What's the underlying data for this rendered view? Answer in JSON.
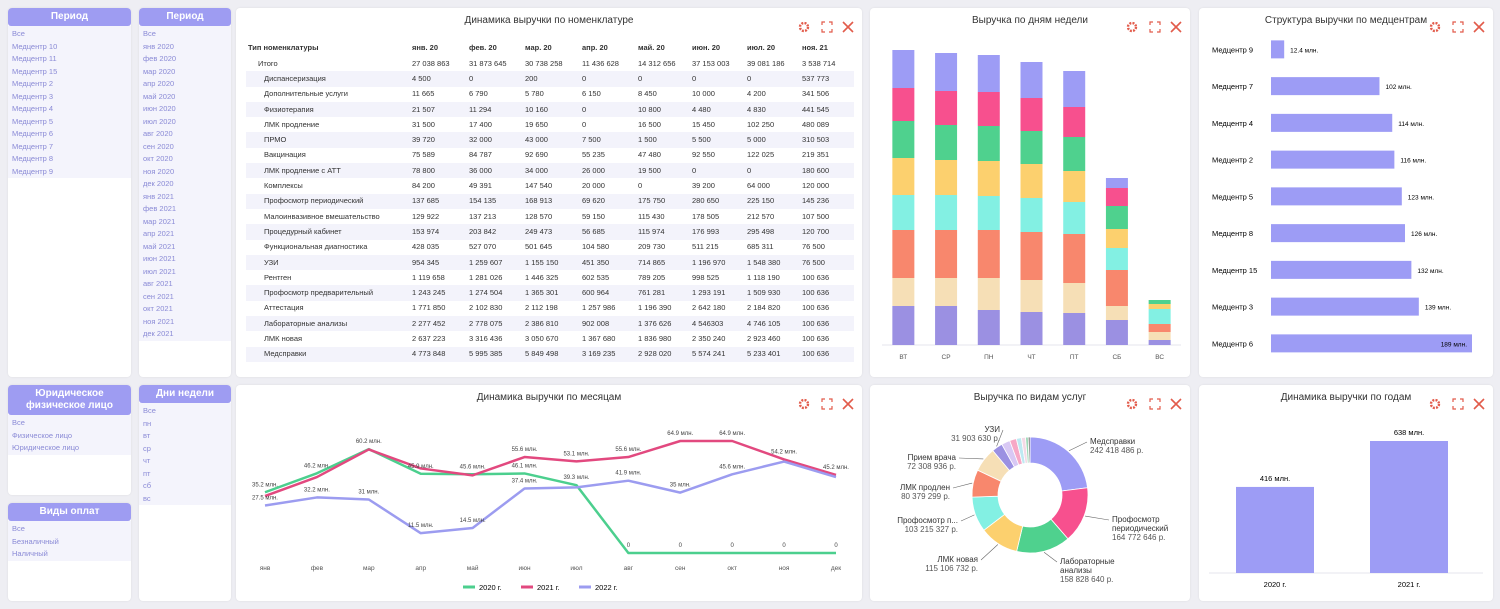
{
  "filters": [
    {
      "title": "Период",
      "items": [
        "Все",
        "Медцентр 10",
        "Медцентр 11",
        "Медцентр 15",
        "Медцентр 2",
        "Медцентр 3",
        "Медцентр 4",
        "Медцентр 5",
        "Медцентр 6",
        "Медцентр 7",
        "Медцентр 8",
        "Медцентр 9"
      ]
    },
    {
      "title": "Период",
      "items": [
        "Все",
        "янв 2020",
        "фев 2020",
        "мар 2020",
        "апр 2020",
        "май 2020",
        "июн 2020",
        "июл 2020",
        "авг 2020",
        "сен 2020",
        "окт 2020",
        "ноя 2020",
        "дек 2020",
        "янв 2021",
        "фев 2021",
        "мар 2021",
        "апр 2021",
        "май 2021",
        "июн 2021",
        "июл 2021",
        "авг 2021",
        "сен 2021",
        "окт 2021",
        "ноя 2021",
        "дек 2021"
      ]
    },
    {
      "title": "Юридическое физическое лицо",
      "items": [
        "Все",
        "Физическое лицо",
        "Юридическое лицо"
      ]
    },
    {
      "title": "Дни недели",
      "items": [
        "Все",
        "пн",
        "вт",
        "ср",
        "чт",
        "пт",
        "сб",
        "вс"
      ]
    },
    {
      "title": "Виды оплат",
      "items": [
        "Все",
        "Безналичный",
        "Наличный"
      ]
    }
  ],
  "table": {
    "title": "Динамика выручки по номенклатуре",
    "columns": [
      "Тип номенклатуры",
      "янв. 20",
      "фев. 20",
      "мар. 20",
      "апр. 20",
      "май. 20",
      "июн. 20",
      "июл. 20",
      "ноя. 21"
    ],
    "rows": [
      [
        "Итого",
        "27 038 863",
        "31 873 645",
        "30 738 258",
        "11 436 628",
        "14 312 656",
        "37 153 003",
        "39 081 186",
        "3 538 714"
      ],
      [
        "Диспансеризация",
        "4 500",
        "0",
        "200",
        "0",
        "0",
        "0",
        "0",
        "537 773"
      ],
      [
        "Дополнительные услуги",
        "11 665",
        "6 790",
        "5 780",
        "6 150",
        "8 450",
        "10 000",
        "4 200",
        "341 506"
      ],
      [
        "Физиотерапия",
        "21 507",
        "11 294",
        "10 160",
        "0",
        "10 800",
        "4 480",
        "4 830",
        "441 545"
      ],
      [
        "ЛМК продление",
        "31 500",
        "17 400",
        "19 650",
        "0",
        "16 500",
        "15 450",
        "102 250",
        "480 089"
      ],
      [
        "ПРМО",
        "39 720",
        "32 000",
        "43 000",
        "7 500",
        "1 500",
        "5 500",
        "5 000",
        "310 503"
      ],
      [
        "Вакцинация",
        "75 589",
        "84 787",
        "92 690",
        "55 235",
        "47 480",
        "92 550",
        "122 025",
        "219 351"
      ],
      [
        "ЛМК продление с АТТ",
        "78 800",
        "36 000",
        "34 000",
        "26 000",
        "19 500",
        "0",
        "0",
        "180 600"
      ],
      [
        "Комплексы",
        "84 200",
        "49 391",
        "147 540",
        "20 000",
        "0",
        "39 200",
        "64 000",
        "120 000"
      ],
      [
        "Профосмотр периодический",
        "137 685",
        "154 135",
        "168 913",
        "69 620",
        "175 750",
        "280 650",
        "225 150",
        "145 236"
      ],
      [
        "Малоинвазивное вмешательство",
        "129 922",
        "137 213",
        "128 570",
        "59 150",
        "115 430",
        "178 505",
        "212 570",
        "107 500"
      ],
      [
        "Процедурный кабинет",
        "153 974",
        "203 842",
        "249 473",
        "56 685",
        "115 974",
        "176 993",
        "295 498",
        "120 700"
      ],
      [
        "Функциональная диагностика",
        "428 035",
        "527 070",
        "501 645",
        "104 580",
        "209 730",
        "511 215",
        "685 311",
        "76 500"
      ],
      [
        "УЗИ",
        "954 345",
        "1 259 607",
        "1 155 150",
        "451 350",
        "714 865",
        "1 196 970",
        "1 548 380",
        "76 500"
      ],
      [
        "Рентген",
        "1 119 658",
        "1 281 026",
        "1 446 325",
        "602 535",
        "789 205",
        "998 525",
        "1 118 190",
        "100 636"
      ],
      [
        "Профосмотр предварительный",
        "1 243 245",
        "1 274 504",
        "1 365 301",
        "600 964",
        "761 281",
        "1 293 191",
        "1 509 930",
        "100 636"
      ],
      [
        "Аттестация",
        "1 771 850",
        "2 102 830",
        "2 112 198",
        "1 257 986",
        "1 196 390",
        "2 642 180",
        "2 184 820",
        "100 636"
      ],
      [
        "Лабораторные анализы",
        "2 277 452",
        "2 778 075",
        "2 386 810",
        "902 008",
        "1 376 626",
        "4 546303",
        "4 746 105",
        "100 636"
      ],
      [
        "ЛМК новая",
        "2 637 223",
        "3 316 436",
        "3 050 670",
        "1 367 680",
        "1 836 980",
        "2 350 240",
        "2 923 460",
        "100 636"
      ],
      [
        "Медсправки",
        "4 773 848",
        "5 995 385",
        "5 849 498",
        "3 169 235",
        "2 928 020",
        "5 574 241",
        "5 233 401",
        "100 636"
      ]
    ]
  },
  "chart_data": [
    {
      "type": "stacked_bar",
      "title": "Выручка по дням недели",
      "categories": [
        "ВТ",
        "СР",
        "ПН",
        "ЧТ",
        "ПТ",
        "СБ",
        "ВС"
      ],
      "series": [
        {
          "color": "#9b90e2",
          "values": [
            39,
            39,
            35,
            33,
            32,
            25,
            5
          ]
        },
        {
          "color": "#f6dfb6",
          "values": [
            28,
            28,
            32,
            32,
            30,
            14,
            8
          ]
        },
        {
          "color": "#f8876d",
          "values": [
            48,
            48,
            48,
            48,
            49,
            36,
            8
          ]
        },
        {
          "color": "#83f0e3",
          "values": [
            35,
            35,
            34,
            34,
            32,
            22,
            15
          ]
        },
        {
          "color": "#fcd06e",
          "values": [
            37,
            35,
            35,
            34,
            31,
            19,
            5
          ]
        },
        {
          "color": "#4fd18e",
          "values": [
            37,
            35,
            35,
            33,
            34,
            23,
            4
          ]
        },
        {
          "color": "#f7508e",
          "values": [
            33,
            34,
            34,
            33,
            30,
            18,
            0
          ]
        },
        {
          "color": "#9d9cf5",
          "values": [
            38,
            38,
            37,
            36,
            36,
            10,
            0
          ]
        }
      ]
    },
    {
      "type": "hbar",
      "title": "Структура выручки по медцентрам",
      "color": "#9d9cf5",
      "categories": [
        "Медцентр 9",
        "Медцентр 7",
        "Медцентр 4",
        "Медцентр 2",
        "Медцентр 5",
        "Медцентр 8",
        "Медцентр 15",
        "Медцентр 3",
        "Медцентр 6"
      ],
      "values": [
        12.4,
        102,
        114,
        116,
        123,
        126,
        132,
        139,
        189
      ],
      "value_labels": [
        "12.4 млн.",
        "102 млн.",
        "114 млн.",
        "116 млн.",
        "123 млн.",
        "126 млн.",
        "132 млн.",
        "139 млн.",
        "189 млн."
      ]
    },
    {
      "type": "line",
      "title": "Динамика выручки по месяцам",
      "categories": [
        "янв",
        "фев",
        "мар",
        "апр",
        "май",
        "июн",
        "июл",
        "авг",
        "сен",
        "окт",
        "ноя",
        "дек"
      ],
      "series": [
        {
          "name": "2020 г.",
          "color": "#4ccf8e",
          "values": [
            35.2,
            46.2,
            60.2,
            45.9,
            45.6,
            46.1,
            39.3,
            0,
            0,
            0,
            0,
            0
          ],
          "value_labels": [
            "35.2 млн.",
            "46.2 млн.",
            "60.2 млн.",
            "45.9 млн.",
            "45.6 млн.",
            "46.1 млн.",
            "39.3 млн.",
            "0",
            "0",
            "0",
            "0",
            "0"
          ]
        },
        {
          "name": "2021 г.",
          "color": "#e2497f",
          "values": [
            33,
            44,
            60,
            49,
            45,
            55.6,
            53.1,
            55.6,
            64.9,
            64.9,
            54.2,
            45.2
          ],
          "value_labels": [
            null,
            null,
            null,
            null,
            null,
            "55.6 млн.",
            "53.1 млн.",
            "55.6 млн.",
            "64.9 млн.",
            "64.9 млн.",
            "54.2 млн.",
            "45.2 млн."
          ]
        },
        {
          "name": "2022 г.",
          "color": "#9c9cf0",
          "values": [
            27.5,
            32.2,
            31,
            11.5,
            14.5,
            37.4,
            38,
            41.9,
            35,
            45.6,
            53,
            44
          ],
          "value_labels": [
            "27.5 млн.",
            "32.2 млн.",
            "31 млн.",
            "11.5 млн.",
            "14.5 млн.",
            "37.4 млн.",
            null,
            "41.9 млн.",
            "35 млн.",
            "45.6 млн.",
            null,
            null
          ]
        }
      ]
    },
    {
      "type": "donut",
      "title": "Выручка по видам услуг",
      "categories": [
        "Медсправки",
        "Профосмотр периодический",
        "Лабораторные анализы",
        "ЛМК новая",
        "Профосмотр п...",
        "ЛМК продлен",
        "Прием врача",
        "УЗИ",
        null,
        null,
        null,
        null,
        null,
        null
      ],
      "values": [
        242418486,
        164772646,
        158828640,
        115106732,
        103215327,
        80379299,
        72308936,
        31903630,
        25000000,
        20000000,
        15000000,
        12000000,
        8000000,
        5000000
      ],
      "value_labels": [
        "242 418 486 р.",
        "164 772 646 р.",
        "158 828 640 р.",
        "115 106 732 р.",
        "103 215 327 р.",
        "80 379 299 р.",
        "72 308 936 р.",
        "31 903 630 р.",
        null,
        null,
        null,
        null,
        null,
        null
      ],
      "colors": [
        "#9d9cf5",
        "#f7508e",
        "#4fd18e",
        "#fcd06e",
        "#83f0e3",
        "#f8876d",
        "#f6dfb6",
        "#9b90e2",
        "#d8c8f4",
        "#f7a8c6",
        "#bfe9f2",
        "#f4d9e6",
        "#9ed9b8",
        "#555555"
      ]
    },
    {
      "type": "bar",
      "title": "Динамика выручки по годам",
      "color": "#9d9cf5",
      "categories": [
        "2020 г.",
        "2021 г."
      ],
      "values": [
        416,
        638
      ],
      "value_labels": [
        "416 млн.",
        "638 млн."
      ]
    }
  ]
}
